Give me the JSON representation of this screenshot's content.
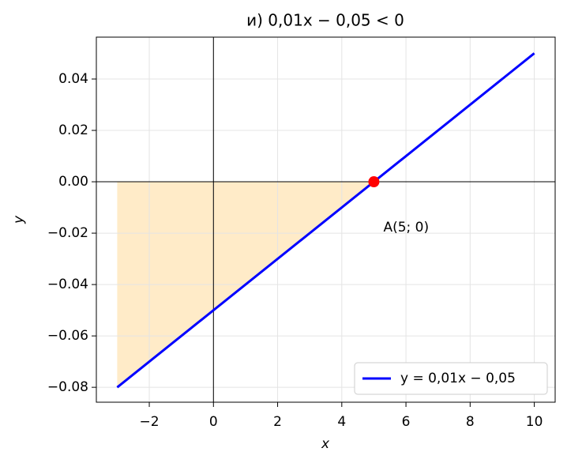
{
  "chart_data": {
    "type": "line",
    "title": "и) 0,01x − 0,05 < 0",
    "x_label": "x",
    "y_label": "y",
    "xlim": [
      -3.65,
      10.65
    ],
    "ylim": [
      -0.0858,
      0.0563
    ],
    "xticks": [
      {
        "value": -2,
        "label": "−2"
      },
      0,
      2,
      4,
      6,
      8,
      10
    ],
    "yticks": [
      {
        "value": -0.08,
        "label": "−0.08"
      },
      {
        "value": -0.06,
        "label": "−0.06"
      },
      {
        "value": -0.04,
        "label": "−0.04"
      },
      {
        "value": -0.02,
        "label": "−0.02"
      },
      {
        "value": 0,
        "label": "0.00"
      },
      0.02,
      0.04
    ],
    "grid": true,
    "legend": "lower right",
    "series": [
      {
        "name": "y = 0,01x − 0,05",
        "color": "#0000ff",
        "x": [
          -3,
          10
        ],
        "values": [
          -0.08,
          0.05
        ]
      }
    ],
    "fill": {
      "color": "#ffebc8",
      "x": [
        -3,
        5
      ],
      "values": [
        -0.08,
        0
      ]
    },
    "point": {
      "x": 5,
      "y": 0,
      "color": "#ff0000",
      "label": "A(5; 0)"
    }
  }
}
